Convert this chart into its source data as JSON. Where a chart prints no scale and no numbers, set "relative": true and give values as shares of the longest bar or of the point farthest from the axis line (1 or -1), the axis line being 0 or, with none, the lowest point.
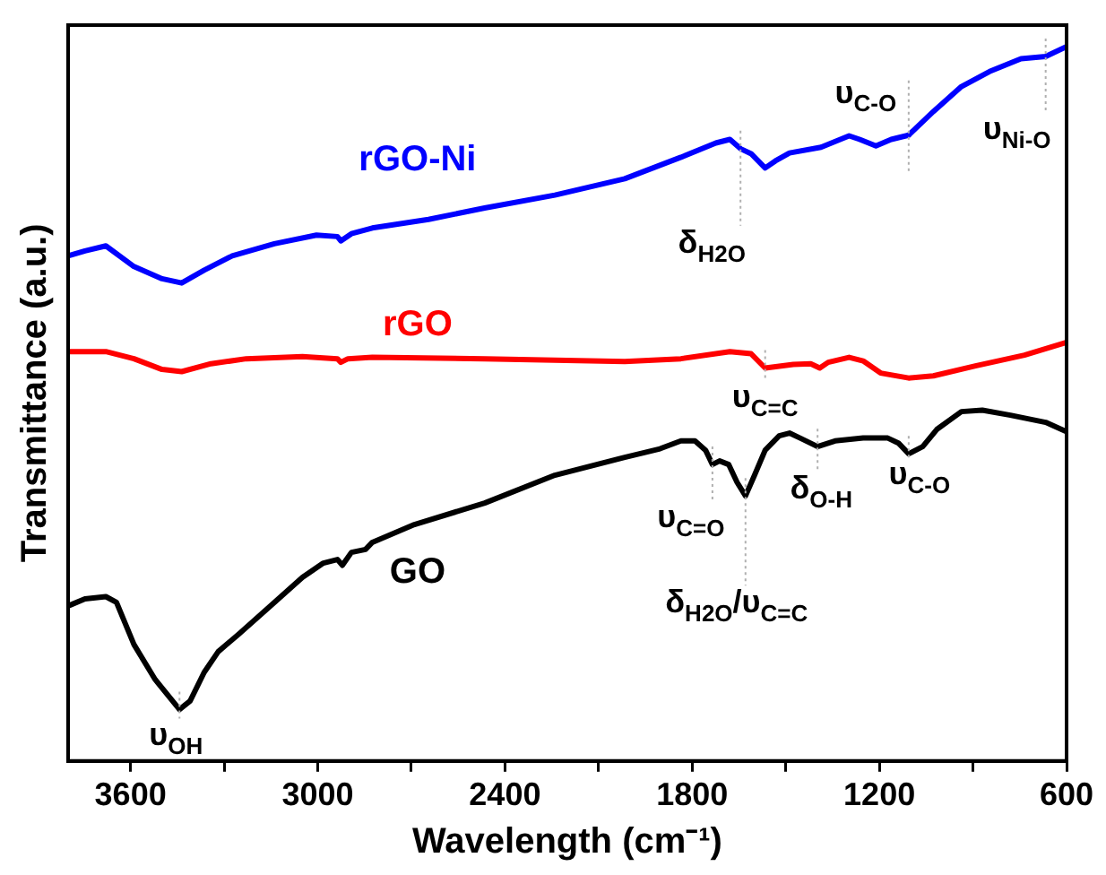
{
  "chart_data": {
    "type": "line",
    "relative": true,
    "xlabel": "Wavelength (cm⁻¹)",
    "ylabel": "Transmittance (a.u.)",
    "xlim": [
      3800,
      600
    ],
    "xticks": [
      {
        "value": 3600,
        "label": "3600"
      },
      {
        "value": 3300,
        "label": null
      },
      {
        "value": 3000,
        "label": "3000"
      },
      {
        "value": 2700,
        "label": null
      },
      {
        "value": 2400,
        "label": "2400"
      },
      {
        "value": 2100,
        "label": null
      },
      {
        "value": 1800,
        "label": "1800"
      },
      {
        "value": 1500,
        "label": null
      },
      {
        "value": 1200,
        "label": "1200"
      },
      {
        "value": 900,
        "label": null
      },
      {
        "value": 600,
        "label": "600"
      }
    ],
    "grid": false,
    "legend": false,
    "marker": "none",
    "line_style": "solid",
    "series": [
      {
        "name": "rGO-Ni",
        "color": "#0000ff",
        "x": [
          3800,
          3746,
          3679,
          3589,
          3499,
          3436,
          3364,
          3274,
          3139,
          3004,
          2937,
          2926,
          2892,
          2825,
          2645,
          2465,
          2240,
          2016,
          1836,
          1724,
          1679,
          1645,
          1611,
          1566,
          1533,
          1488,
          1387,
          1297,
          1263,
          1211,
          1162,
          1106,
          1027,
          937,
          847,
          746,
          667,
          600
        ],
        "values": [
          0.707,
          0.714,
          0.721,
          0.692,
          0.675,
          0.669,
          0.687,
          0.707,
          0.724,
          0.736,
          0.734,
          0.728,
          0.738,
          0.746,
          0.758,
          0.774,
          0.792,
          0.815,
          0.845,
          0.865,
          0.87,
          0.857,
          0.85,
          0.83,
          0.84,
          0.851,
          0.859,
          0.875,
          0.87,
          0.861,
          0.87,
          0.876,
          0.909,
          0.944,
          0.965,
          0.983,
          0.986,
          1.0
        ]
      },
      {
        "name": "rGO",
        "color": "#ff0000",
        "x": [
          3800,
          3679,
          3589,
          3499,
          3436,
          3342,
          3229,
          3049,
          2937,
          2926,
          2903,
          2825,
          2465,
          2016,
          1836,
          1679,
          1611,
          1566,
          1476,
          1420,
          1391,
          1364,
          1297,
          1252,
          1196,
          1106,
          1027,
          892,
          735,
          600
        ],
        "values": [
          0.573,
          0.573,
          0.563,
          0.548,
          0.545,
          0.556,
          0.563,
          0.566,
          0.563,
          0.558,
          0.563,
          0.565,
          0.563,
          0.559,
          0.563,
          0.573,
          0.57,
          0.55,
          0.555,
          0.556,
          0.55,
          0.558,
          0.565,
          0.56,
          0.543,
          0.536,
          0.539,
          0.553,
          0.568,
          0.586
        ]
      },
      {
        "name": "GO",
        "color": "#000000",
        "x": [
          3800,
          3746,
          3679,
          3645,
          3589,
          3521,
          3443,
          3409,
          3364,
          3319,
          3252,
          3139,
          3049,
          2982,
          2937,
          2921,
          2892,
          2847,
          2825,
          2690,
          2465,
          2240,
          2016,
          1903,
          1836,
          1791,
          1757,
          1735,
          1712,
          1683,
          1656,
          1629,
          1600,
          1566,
          1521,
          1488,
          1454,
          1398,
          1342,
          1252,
          1173,
          1139,
          1106,
          1061,
          1016,
          937,
          870,
          780,
          667,
          600
        ],
        "values": [
          0.217,
          0.227,
          0.23,
          0.222,
          0.163,
          0.114,
          0.072,
          0.084,
          0.124,
          0.153,
          0.178,
          0.222,
          0.257,
          0.277,
          0.282,
          0.274,
          0.292,
          0.296,
          0.306,
          0.331,
          0.361,
          0.4,
          0.425,
          0.437,
          0.448,
          0.448,
          0.435,
          0.415,
          0.42,
          0.415,
          0.39,
          0.371,
          0.4,
          0.435,
          0.455,
          0.459,
          0.452,
          0.44,
          0.448,
          0.452,
          0.452,
          0.445,
          0.43,
          0.44,
          0.464,
          0.489,
          0.491,
          0.484,
          0.474,
          0.461
        ]
      }
    ],
    "annotations": [
      {
        "text": "υ$_{OH}$",
        "x": 3443,
        "y": 0.072
      },
      {
        "text": "δ$_{H2O}$",
        "x": 1645,
        "y": 0.857
      },
      {
        "text": "υ$_{C-O}$",
        "x": 1106,
        "y": 0.876
      },
      {
        "text": "υ$_{Ni-O}$",
        "x": 667,
        "y": 0.986
      },
      {
        "text": "υ$_{C=C}$",
        "x": 1566,
        "y": 0.55
      },
      {
        "text": "υ$_{C=O}$",
        "x": 1735,
        "y": 0.415
      },
      {
        "text": "δ$_{O-H}$",
        "x": 1398,
        "y": 0.44
      },
      {
        "text": "υ$_{C-O}$",
        "x": 1106,
        "y": 0.43
      },
      {
        "text": "δ$_{H2O}$/υ$_{C=C}$",
        "x": 1629,
        "y": 0.371
      }
    ]
  }
}
